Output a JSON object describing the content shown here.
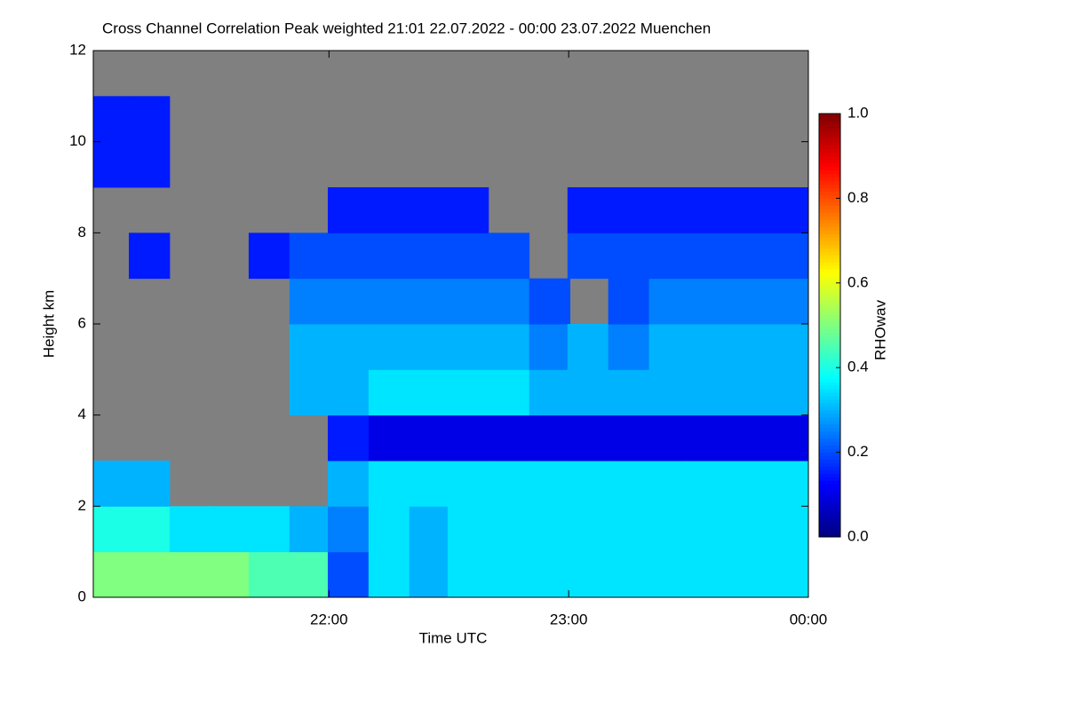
{
  "chart_data": {
    "type": "heatmap",
    "title": "Cross Channel Correlation Peak weighted   21:01 22.07.2022 - 00:00 23.07.2022 Muenchen",
    "xlabel": "Time UTC",
    "ylabel": "Height km",
    "colorbar_label": "RHOwav",
    "background": "#808080",
    "xlim": [
      21.0167,
      24.0
    ],
    "xticks": [
      {
        "value": 22,
        "label": "22:00"
      },
      {
        "value": 23,
        "label": "23:00"
      },
      {
        "value": 24,
        "label": "00:00"
      }
    ],
    "ylim": [
      0,
      12
    ],
    "yticks": [
      0,
      2,
      4,
      6,
      8,
      10,
      12
    ],
    "zlim": [
      0,
      1
    ],
    "zticks": [
      {
        "value": 0,
        "label": "0.0"
      },
      {
        "value": 0.2,
        "label": "0.2"
      },
      {
        "value": 0.4,
        "label": "0.4"
      },
      {
        "value": 0.6,
        "label": "0.6"
      },
      {
        "value": 0.8,
        "label": "0.8"
      },
      {
        "value": 1,
        "label": "1.0"
      }
    ],
    "x": [
      21.08,
      21.25,
      21.42,
      21.58,
      21.75,
      21.92,
      22.08,
      22.25,
      22.42,
      22.58,
      22.75,
      22.92,
      23.08,
      23.25,
      23.42,
      23.58,
      23.75,
      23.92
    ],
    "y": [
      0.5,
      1.5,
      2.5,
      3.5,
      4.5,
      5.5,
      6.5,
      7.5,
      8.5,
      9.5,
      10.5,
      11.5
    ],
    "z": [
      [
        0.5,
        0.4,
        0.3,
        null,
        null,
        null,
        null,
        null,
        null,
        0.15,
        0.15,
        null
      ],
      [
        0.5,
        0.4,
        0.3,
        null,
        null,
        null,
        null,
        0.15,
        null,
        0.15,
        0.15,
        null
      ],
      [
        0.5,
        0.35,
        null,
        null,
        null,
        null,
        null,
        null,
        null,
        null,
        null,
        null
      ],
      [
        0.5,
        0.35,
        null,
        null,
        null,
        null,
        null,
        null,
        null,
        null,
        null,
        null
      ],
      [
        0.45,
        0.35,
        null,
        null,
        null,
        null,
        null,
        0.15,
        null,
        null,
        null,
        null
      ],
      [
        0.45,
        0.3,
        null,
        null,
        0.3,
        0.3,
        0.25,
        0.2,
        null,
        null,
        null,
        null
      ],
      [
        0.2,
        0.25,
        0.3,
        0.15,
        0.3,
        0.3,
        0.25,
        0.2,
        0.15,
        null,
        null,
        null
      ],
      [
        0.35,
        0.35,
        0.35,
        0.1,
        0.35,
        0.3,
        0.25,
        0.2,
        0.15,
        null,
        null,
        null
      ],
      [
        0.3,
        0.3,
        0.35,
        0.1,
        0.35,
        0.3,
        0.25,
        0.2,
        0.15,
        null,
        null,
        null
      ],
      [
        0.35,
        0.35,
        0.35,
        0.1,
        0.35,
        0.3,
        0.25,
        0.2,
        0.15,
        null,
        null,
        null
      ],
      [
        0.35,
        0.35,
        0.35,
        0.1,
        0.35,
        0.3,
        0.25,
        0.2,
        null,
        null,
        null,
        null
      ],
      [
        0.35,
        0.35,
        0.35,
        0.1,
        0.3,
        0.25,
        0.2,
        null,
        null,
        null,
        null,
        null
      ],
      [
        0.35,
        0.35,
        0.35,
        0.1,
        0.3,
        0.3,
        null,
        0.2,
        0.15,
        null,
        null,
        null
      ],
      [
        0.35,
        0.35,
        0.35,
        0.1,
        0.3,
        0.25,
        0.2,
        0.2,
        0.15,
        null,
        null,
        null
      ],
      [
        0.35,
        0.35,
        0.35,
        0.1,
        0.3,
        0.3,
        0.25,
        0.2,
        0.15,
        null,
        null,
        null
      ],
      [
        0.35,
        0.35,
        0.35,
        0.1,
        0.3,
        0.3,
        0.25,
        0.2,
        0.15,
        null,
        null,
        null
      ],
      [
        0.35,
        0.35,
        0.35,
        0.1,
        0.3,
        0.3,
        0.25,
        0.2,
        0.15,
        null,
        null,
        null
      ],
      [
        0.35,
        0.35,
        0.35,
        0.1,
        0.3,
        0.3,
        0.25,
        0.2,
        0.15,
        null,
        null,
        null
      ]
    ]
  }
}
